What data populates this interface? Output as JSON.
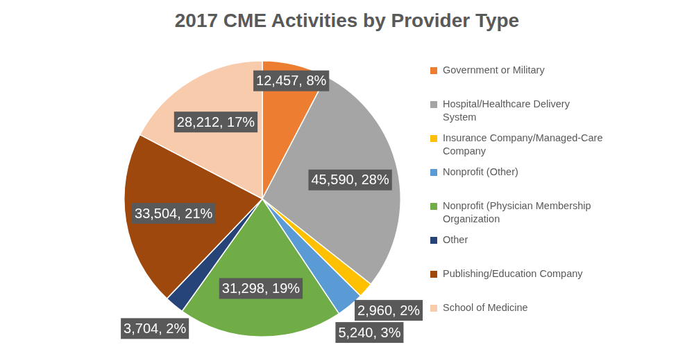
{
  "chart_data": {
    "type": "pie",
    "title": "2017 CME Activities by Provider Type",
    "categories": [
      "Government or Military",
      "Hospital/Healthcare Delivery System",
      "Insurance Company/Managed-Care Company",
      "Nonprofit (Other)",
      "Nonprofit (Physician Membership Organization",
      "Other",
      "Publishing/Education Company",
      "School of Medicine"
    ],
    "values": [
      12457,
      45590,
      2960,
      5240,
      31298,
      3704,
      33504,
      28212
    ],
    "value_labels": [
      "12,457, 8%",
      "45,590, 28%",
      "2,960, 2%",
      "5,240, 3%",
      "31,298, 19%",
      "3,704, 2%",
      "33,504, 21%",
      "28,212, 17%"
    ],
    "colors": [
      "#ed7d31",
      "#a5a5a5",
      "#ffc000",
      "#5b9bd5",
      "#70ad47",
      "#264478",
      "#9e480e",
      "#f8cbad"
    ],
    "legend": "right",
    "data_labels": true
  }
}
